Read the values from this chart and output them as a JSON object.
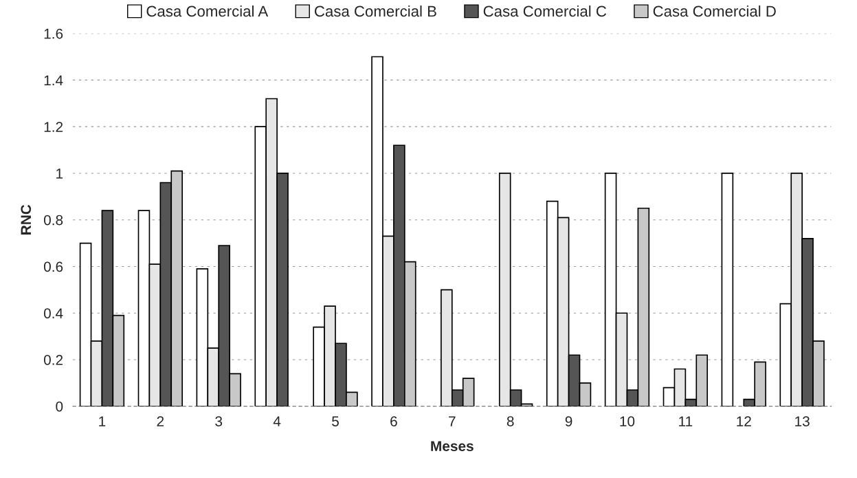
{
  "chart_data": {
    "type": "bar",
    "xlabel": "Meses",
    "ylabel": "RNC",
    "categories": [
      "1",
      "2",
      "3",
      "4",
      "5",
      "6",
      "7",
      "8",
      "9",
      "10",
      "11",
      "12",
      "13"
    ],
    "series": [
      {
        "name": "Casa Comercial A",
        "color": "#ffffff",
        "values": [
          0.7,
          0.84,
          0.59,
          1.2,
          0.34,
          1.5,
          null,
          null,
          0.88,
          1.0,
          0.08,
          1.0,
          0.44
        ]
      },
      {
        "name": "Casa Comercial B",
        "color": "#e6e6e6",
        "values": [
          0.28,
          0.61,
          0.25,
          1.32,
          0.43,
          0.73,
          0.5,
          1.0,
          0.81,
          0.4,
          0.16,
          null,
          1.0
        ]
      },
      {
        "name": "Casa Comercial C",
        "color": "#555555",
        "values": [
          0.84,
          0.96,
          0.69,
          1.0,
          0.27,
          1.12,
          0.07,
          0.07,
          0.22,
          0.07,
          0.03,
          0.03,
          0.72
        ]
      },
      {
        "name": "Casa Comercial D",
        "color": "#c8c8c8",
        "values": [
          0.39,
          1.01,
          0.14,
          null,
          0.06,
          0.62,
          0.12,
          0.01,
          0.1,
          0.85,
          0.22,
          0.19,
          0.28
        ]
      }
    ],
    "ylim": [
      0,
      1.6
    ],
    "yticks": [
      0,
      0.2,
      0.4,
      0.6,
      0.8,
      1,
      1.2,
      1.4,
      1.6
    ],
    "grid": "y",
    "legend": "top"
  }
}
